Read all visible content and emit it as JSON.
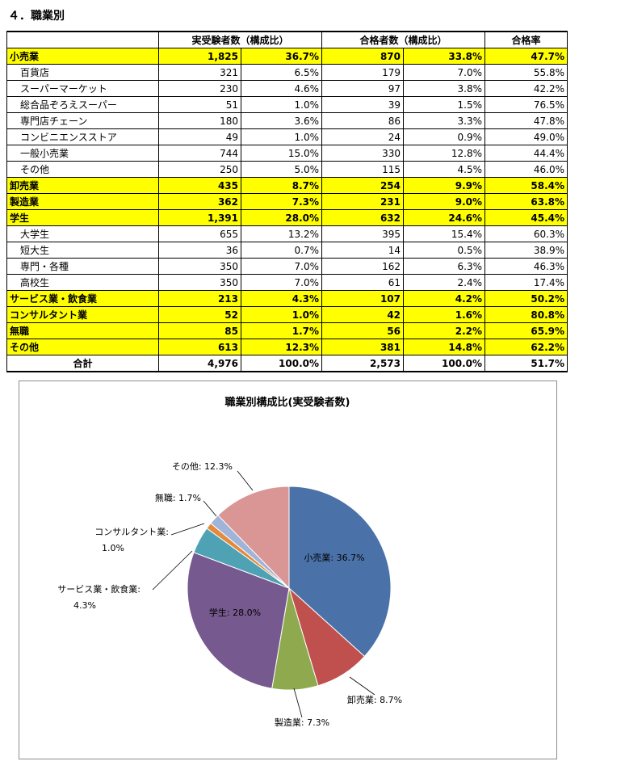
{
  "section": {
    "title": "４．職業別"
  },
  "table": {
    "headers": [
      "",
      "実受験者数（構成比）",
      "合格者数（構成比）",
      "合格率"
    ],
    "rows": [
      {
        "label": "小売業",
        "type": "cat",
        "examinees": "1,825",
        "examinees_pct": "36.7%",
        "passers": "870",
        "passers_pct": "33.8%",
        "rate": "47.7%"
      },
      {
        "label": "百貨店",
        "type": "sub",
        "examinees": "321",
        "examinees_pct": "6.5%",
        "passers": "179",
        "passers_pct": "7.0%",
        "rate": "55.8%"
      },
      {
        "label": "スーパーマーケット",
        "type": "sub",
        "examinees": "230",
        "examinees_pct": "4.6%",
        "passers": "97",
        "passers_pct": "3.8%",
        "rate": "42.2%"
      },
      {
        "label": "総合品ぞろえスーパー",
        "type": "sub",
        "examinees": "51",
        "examinees_pct": "1.0%",
        "passers": "39",
        "passers_pct": "1.5%",
        "rate": "76.5%"
      },
      {
        "label": "専門店チェーン",
        "type": "sub",
        "examinees": "180",
        "examinees_pct": "3.6%",
        "passers": "86",
        "passers_pct": "3.3%",
        "rate": "47.8%"
      },
      {
        "label": "コンビニエンスストア",
        "type": "sub",
        "examinees": "49",
        "examinees_pct": "1.0%",
        "passers": "24",
        "passers_pct": "0.9%",
        "rate": "49.0%"
      },
      {
        "label": "一般小売業",
        "type": "sub",
        "examinees": "744",
        "examinees_pct": "15.0%",
        "passers": "330",
        "passers_pct": "12.8%",
        "rate": "44.4%"
      },
      {
        "label": "その他",
        "type": "sub",
        "examinees": "250",
        "examinees_pct": "5.0%",
        "passers": "115",
        "passers_pct": "4.5%",
        "rate": "46.0%"
      },
      {
        "label": "卸売業",
        "type": "cat",
        "examinees": "435",
        "examinees_pct": "8.7%",
        "passers": "254",
        "passers_pct": "9.9%",
        "rate": "58.4%"
      },
      {
        "label": "製造業",
        "type": "cat",
        "examinees": "362",
        "examinees_pct": "7.3%",
        "passers": "231",
        "passers_pct": "9.0%",
        "rate": "63.8%"
      },
      {
        "label": "学生",
        "type": "cat",
        "examinees": "1,391",
        "examinees_pct": "28.0%",
        "passers": "632",
        "passers_pct": "24.6%",
        "rate": "45.4%"
      },
      {
        "label": "大学生",
        "type": "sub",
        "examinees": "655",
        "examinees_pct": "13.2%",
        "passers": "395",
        "passers_pct": "15.4%",
        "rate": "60.3%"
      },
      {
        "label": "短大生",
        "type": "sub",
        "examinees": "36",
        "examinees_pct": "0.7%",
        "passers": "14",
        "passers_pct": "0.5%",
        "rate": "38.9%"
      },
      {
        "label": "専門・各種",
        "type": "sub",
        "examinees": "350",
        "examinees_pct": "7.0%",
        "passers": "162",
        "passers_pct": "6.3%",
        "rate": "46.3%"
      },
      {
        "label": "高校生",
        "type": "sub",
        "examinees": "350",
        "examinees_pct": "7.0%",
        "passers": "61",
        "passers_pct": "2.4%",
        "rate": "17.4%"
      },
      {
        "label": "サービス業・飲食業",
        "type": "cat",
        "examinees": "213",
        "examinees_pct": "4.3%",
        "passers": "107",
        "passers_pct": "4.2%",
        "rate": "50.2%"
      },
      {
        "label": "コンサルタント業",
        "type": "cat",
        "examinees": "52",
        "examinees_pct": "1.0%",
        "passers": "42",
        "passers_pct": "1.6%",
        "rate": "80.8%"
      },
      {
        "label": "無職",
        "type": "cat",
        "examinees": "85",
        "examinees_pct": "1.7%",
        "passers": "56",
        "passers_pct": "2.2%",
        "rate": "65.9%"
      },
      {
        "label": "その他",
        "type": "cat",
        "examinees": "613",
        "examinees_pct": "12.3%",
        "passers": "381",
        "passers_pct": "14.8%",
        "rate": "62.2%"
      },
      {
        "label": "合計",
        "type": "total",
        "examinees": "4,976",
        "examinees_pct": "100.0%",
        "passers": "2,573",
        "passers_pct": "100.0%",
        "rate": "51.7%"
      }
    ]
  },
  "chart_data": {
    "type": "pie",
    "title": "職業別構成比(実受験者数)",
    "slices": [
      {
        "label": "小売業",
        "value": 36.7,
        "text": "小売業: 36.7%",
        "color": "#4a72a8"
      },
      {
        "label": "卸売業",
        "value": 8.7,
        "text": "卸売業: 8.7%",
        "color": "#c0504d"
      },
      {
        "label": "製造業",
        "value": 7.3,
        "text": "製造業: 7.3%",
        "color": "#8faa4e"
      },
      {
        "label": "学生",
        "value": 28.0,
        "text": "学生: 28.0%",
        "color": "#76598e"
      },
      {
        "label": "サービス業・飲食業",
        "value": 4.3,
        "text": [
          "サービス業・飲食業:",
          "4.3%"
        ],
        "color": "#4fa1b4"
      },
      {
        "label": "コンサルタント業",
        "value": 1.0,
        "text": [
          "コンサルタント業:",
          "1.0%"
        ],
        "color": "#e38a3c"
      },
      {
        "label": "無職",
        "value": 1.7,
        "text": "無職: 1.7%",
        "color": "#9fb4d8"
      },
      {
        "label": "その他",
        "value": 12.3,
        "text": "その他: 12.3%",
        "color": "#d99694"
      }
    ]
  }
}
